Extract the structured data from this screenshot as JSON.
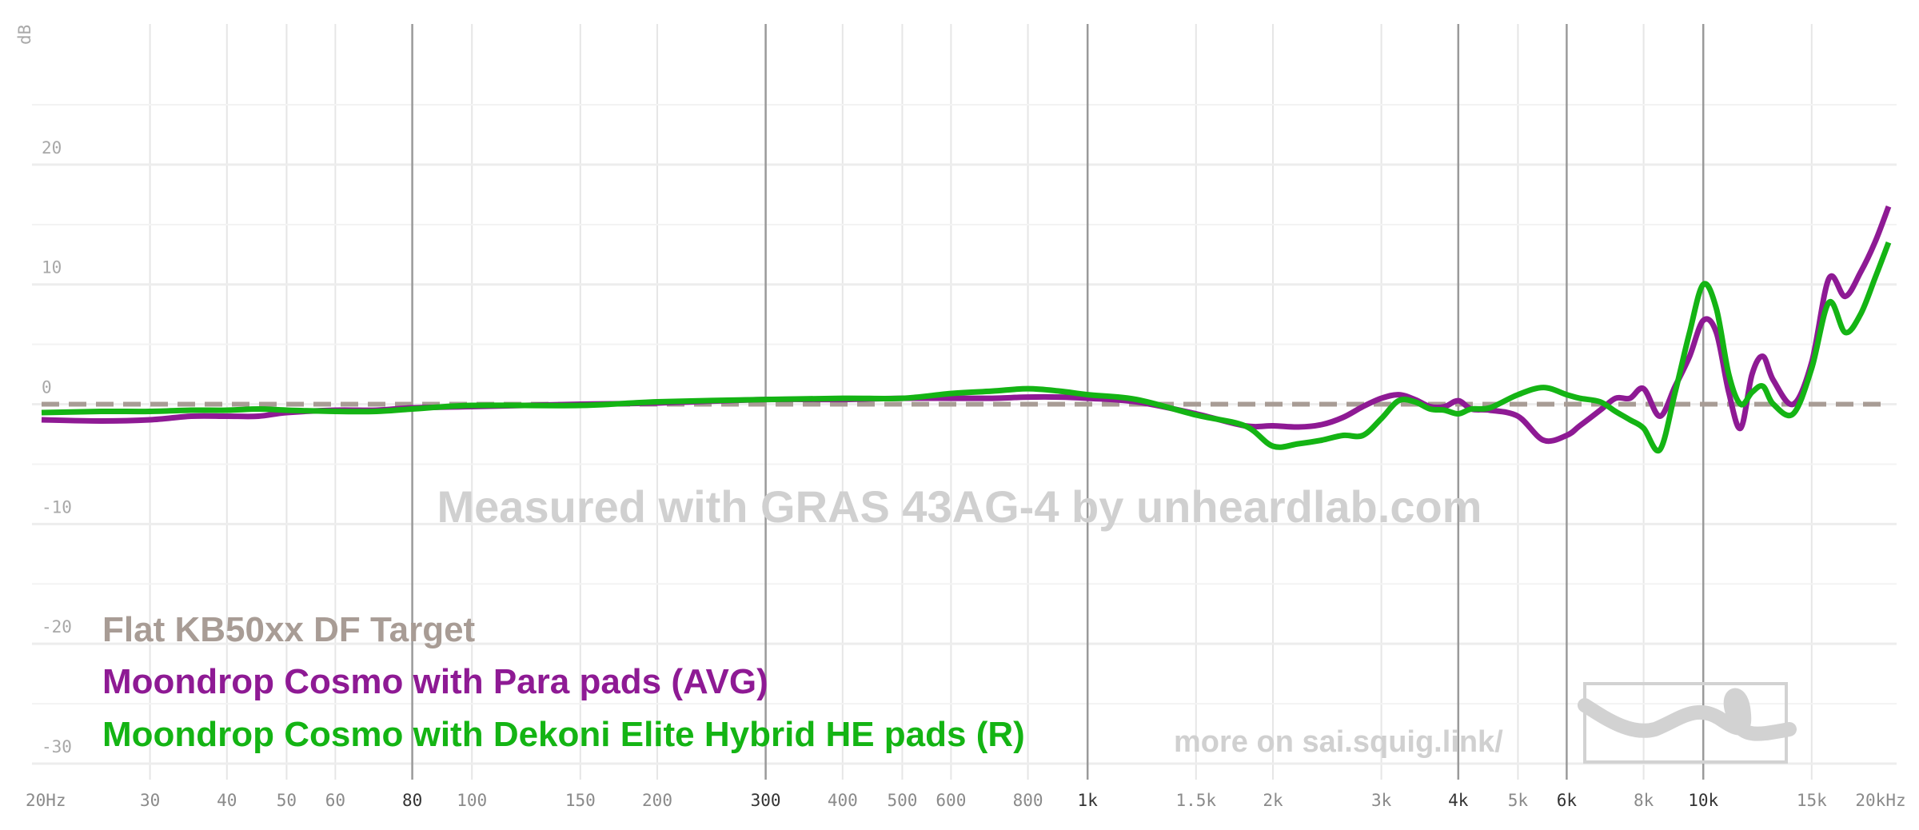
{
  "chart_data": {
    "type": "line",
    "ylabel": "dB",
    "xscale": "log",
    "xlim": [
      20,
      20000
    ],
    "ylim": [
      -30,
      25
    ],
    "grid": true,
    "x_tick_labels": [
      {
        "v": 20,
        "t": "20Hz",
        "major": false
      },
      {
        "v": 30,
        "t": "30",
        "major": false
      },
      {
        "v": 40,
        "t": "40",
        "major": false
      },
      {
        "v": 50,
        "t": "50",
        "major": false
      },
      {
        "v": 60,
        "t": "60",
        "major": false
      },
      {
        "v": 80,
        "t": "80",
        "major": true
      },
      {
        "v": 100,
        "t": "100",
        "major": false
      },
      {
        "v": 150,
        "t": "150",
        "major": false
      },
      {
        "v": 200,
        "t": "200",
        "major": false
      },
      {
        "v": 300,
        "t": "300",
        "major": true
      },
      {
        "v": 400,
        "t": "400",
        "major": false
      },
      {
        "v": 500,
        "t": "500",
        "major": false
      },
      {
        "v": 600,
        "t": "600",
        "major": false
      },
      {
        "v": 800,
        "t": "800",
        "major": false
      },
      {
        "v": 1000,
        "t": "1k",
        "major": true
      },
      {
        "v": 1500,
        "t": "1.5k",
        "major": false
      },
      {
        "v": 2000,
        "t": "2k",
        "major": false
      },
      {
        "v": 3000,
        "t": "3k",
        "major": false
      },
      {
        "v": 4000,
        "t": "4k",
        "major": true
      },
      {
        "v": 5000,
        "t": "5k",
        "major": false
      },
      {
        "v": 6000,
        "t": "6k",
        "major": true
      },
      {
        "v": 8000,
        "t": "8k",
        "major": false
      },
      {
        "v": 10000,
        "t": "10k",
        "major": true
      },
      {
        "v": 15000,
        "t": "15k",
        "major": false
      },
      {
        "v": 20000,
        "t": "20kHz",
        "major": false
      }
    ],
    "y_tick_labels": [
      {
        "v": 20,
        "t": "20"
      },
      {
        "v": 10,
        "t": "10"
      },
      {
        "v": 0,
        "t": "0"
      },
      {
        "v": -10,
        "t": "-10"
      },
      {
        "v": -20,
        "t": "-20"
      },
      {
        "v": -30,
        "t": "-30"
      }
    ],
    "series": [
      {
        "name": "Flat KB50xx DF Target",
        "color": "#a89c95",
        "dashed": true,
        "x": [
          20,
          20000
        ],
        "y": [
          0,
          0
        ]
      },
      {
        "name": "Moondrop Cosmo with Para pads (AVG)",
        "color": "#8e1a94",
        "x": [
          20,
          25,
          30,
          35,
          40,
          45,
          50,
          60,
          70,
          80,
          100,
          150,
          200,
          300,
          400,
          500,
          600,
          700,
          800,
          900,
          1000,
          1200,
          1500,
          1800,
          2000,
          2200,
          2400,
          2600,
          2800,
          3000,
          3200,
          3400,
          3600,
          3800,
          4000,
          4200,
          4500,
          5000,
          5500,
          6000,
          6300,
          6800,
          7200,
          7600,
          8000,
          8500,
          9000,
          9500,
          10000,
          10500,
          11000,
          11500,
          12000,
          12500,
          13000,
          14000,
          15000,
          16000,
          17000,
          18000,
          19000,
          20000
        ],
        "y": [
          -1.3,
          -1.4,
          -1.3,
          -1.0,
          -1.0,
          -1.0,
          -0.7,
          -0.5,
          -0.5,
          -0.3,
          -0.2,
          0.0,
          0.1,
          0.4,
          0.4,
          0.5,
          0.5,
          0.5,
          0.6,
          0.6,
          0.5,
          0.2,
          -0.8,
          -1.8,
          -1.8,
          -1.9,
          -1.7,
          -1.1,
          -0.2,
          0.5,
          0.8,
          0.4,
          -0.2,
          -0.2,
          0.3,
          -0.4,
          -0.5,
          -1.0,
          -3.0,
          -2.6,
          -1.8,
          -0.5,
          0.5,
          0.5,
          1.3,
          -1.0,
          1.5,
          4.0,
          7.0,
          6.0,
          1.0,
          -2.0,
          2.5,
          4.0,
          2.0,
          0.0,
          3.5,
          10.5,
          9.0,
          11.0,
          13.5,
          16.5
        ]
      },
      {
        "name": "Moondrop Cosmo with Dekoni Elite Hybrid HE pads (R)",
        "color": "#14b414",
        "x": [
          20,
          25,
          30,
          35,
          40,
          45,
          50,
          60,
          70,
          80,
          100,
          150,
          200,
          300,
          400,
          500,
          600,
          700,
          800,
          900,
          1000,
          1200,
          1500,
          1800,
          2000,
          2200,
          2400,
          2600,
          2800,
          3000,
          3200,
          3400,
          3600,
          3800,
          4000,
          4200,
          4500,
          5000,
          5500,
          6000,
          6300,
          6800,
          7200,
          7600,
          8000,
          8500,
          9000,
          9500,
          10000,
          10500,
          11000,
          11500,
          12000,
          12500,
          13000,
          14000,
          15000,
          16000,
          17000,
          18000,
          19000,
          20000
        ],
        "y": [
          -0.7,
          -0.6,
          -0.6,
          -0.5,
          -0.5,
          -0.4,
          -0.5,
          -0.6,
          -0.6,
          -0.4,
          -0.1,
          -0.1,
          0.2,
          0.4,
          0.5,
          0.5,
          0.9,
          1.1,
          1.3,
          1.1,
          0.8,
          0.4,
          -0.9,
          -1.8,
          -3.5,
          -3.3,
          -3.0,
          -2.6,
          -2.6,
          -1.2,
          0.3,
          0.2,
          -0.4,
          -0.5,
          -0.8,
          -0.4,
          -0.3,
          0.8,
          1.4,
          0.8,
          0.5,
          0.2,
          -0.6,
          -1.3,
          -2.0,
          -3.8,
          1.0,
          6.0,
          10.0,
          8.0,
          2.5,
          0.0,
          1.0,
          1.5,
          0.0,
          -0.8,
          3.0,
          8.5,
          6.0,
          7.5,
          10.5,
          13.5
        ]
      }
    ],
    "legend": {
      "placement": "bottom-left"
    }
  },
  "watermark": {
    "center": "Measured with GRAS 43AG-4 by unheardlab.com",
    "link": "more on sai.squig.link/"
  }
}
